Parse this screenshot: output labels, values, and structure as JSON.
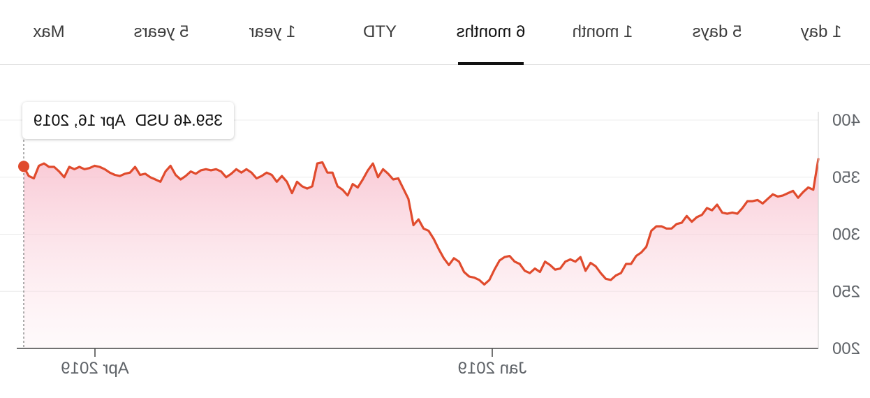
{
  "tabs": [
    {
      "label": "1 day"
    },
    {
      "label": "5 days"
    },
    {
      "label": "1 month"
    },
    {
      "label": "6 months",
      "active": true
    },
    {
      "label": "YTD"
    },
    {
      "label": "1 year"
    },
    {
      "label": "5 years"
    },
    {
      "label": "Max"
    }
  ],
  "tooltip": {
    "price": "359.46 USD",
    "date": "Apr 16, 2019"
  },
  "colors": {
    "line": "#e04b2d",
    "fill": "#f8c9d4",
    "grid": "#ececec",
    "axis": "#5f6368",
    "active_tab": "#111111"
  },
  "chart_data": {
    "type": "area",
    "mirrored_horizontally": true,
    "series": [
      {
        "values": [
          366,
          339,
          341,
          337,
          332,
          338,
          336,
          334,
          333,
          335,
          331,
          327,
          330,
          329,
          329,
          323,
          318,
          319,
          318,
          319,
          326,
          321,
          323,
          317,
          315,
          311,
          316,
          310,
          309,
          305,
          305,
          307,
          307,
          303,
          289,
          284,
          281,
          274,
          274,
          266,
          264,
          260,
          261,
          266,
          272,
          275,
          268,
          280,
          276,
          278,
          276,
          270,
          269,
          273,
          276,
          267,
          270,
          266,
          268,
          274,
          276,
          281,
          280,
          277,
          269,
          260,
          256,
          260,
          262,
          263,
          267,
          276,
          279,
          273,
          279,
          287,
          296,
          303,
          305,
          313,
          308,
          331,
          340,
          349,
          348,
          353,
          357,
          350,
          362,
          356,
          348,
          341,
          344,
          334,
          339,
          342,
          354,
          354,
          363,
          362,
          342,
          340,
          342,
          346,
          336,
          346,
          351,
          346,
          352,
          354,
          351,
          349,
          354,
          357,
          354,
          357,
          353,
          350,
          355,
          357,
          356,
          357,
          356,
          353,
          355,
          351,
          348,
          352,
          360,
          355,
          346,
          348,
          350,
          353,
          352,
          359,
          354,
          353,
          351,
          352,
          354,
          357,
          359,
          360,
          358,
          357,
          359,
          357,
          359,
          350,
          355,
          359,
          359,
          362,
          360,
          349,
          351,
          359
        ]
      }
    ],
    "xticks": [
      "Jan 2019",
      "Apr 2019"
    ],
    "yticks": [
      400,
      350,
      300,
      250,
      200
    ],
    "ylim": [
      200,
      400
    ],
    "grid": true,
    "highlight": {
      "value": 359.46,
      "date": "Apr 16, 2019",
      "position": "last point (left edge)"
    }
  }
}
